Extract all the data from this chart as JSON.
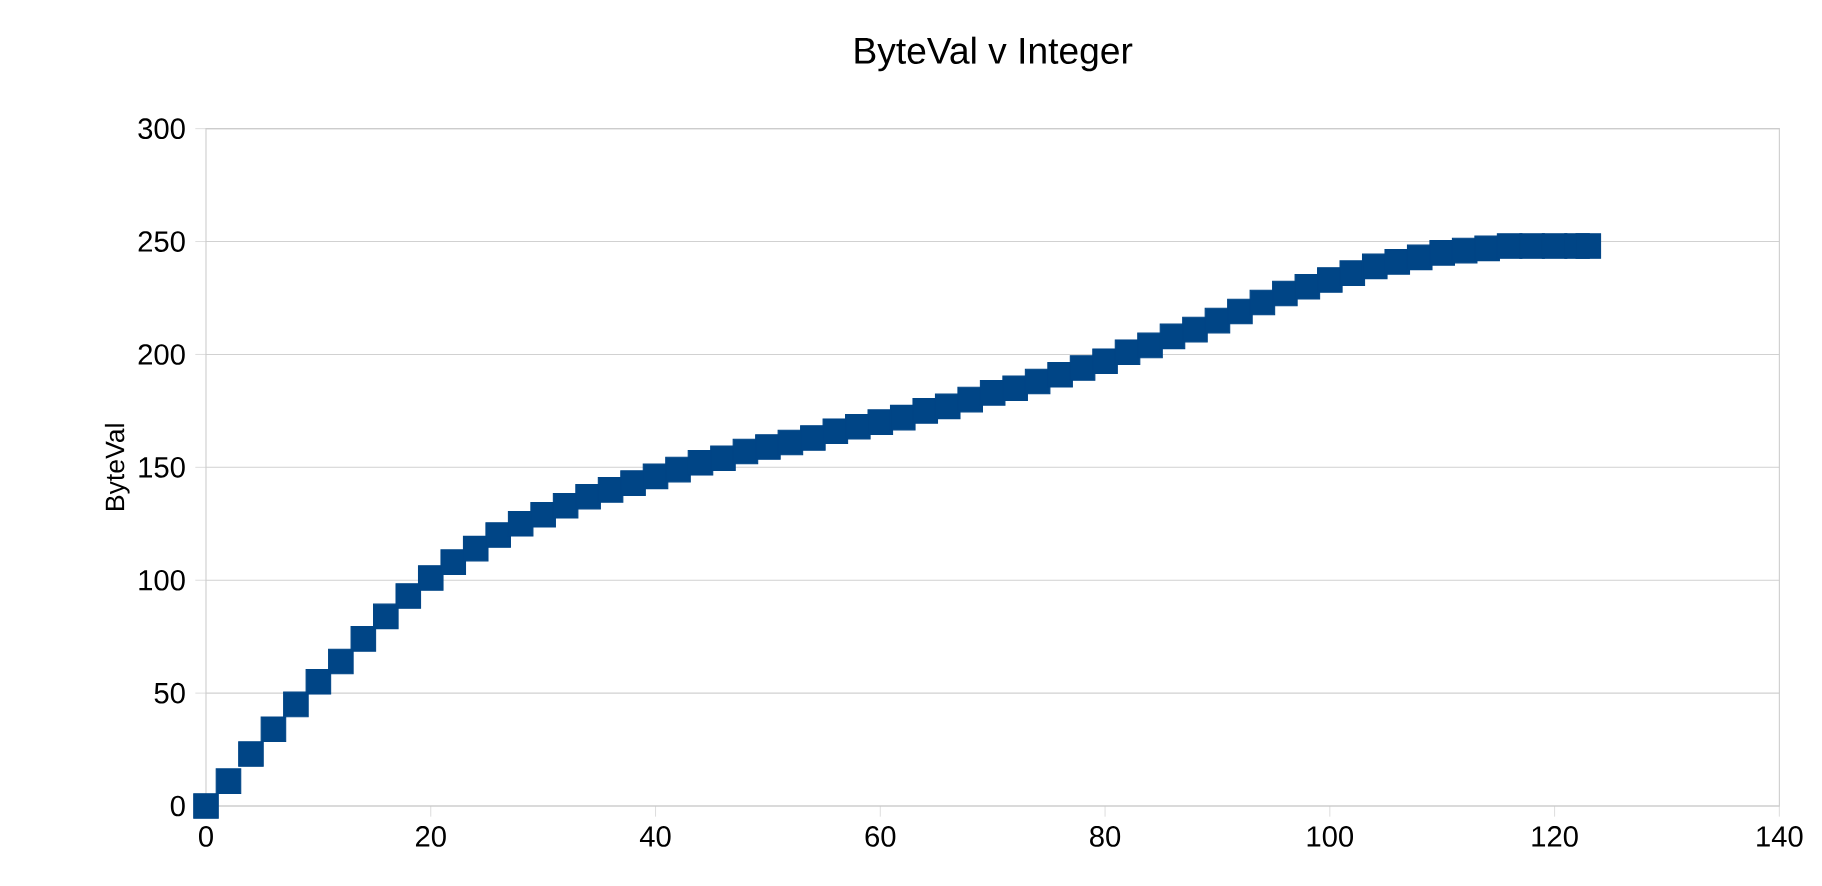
{
  "chart_data": {
    "type": "scatter",
    "title": "ByteVal v Integer",
    "ylabel": "ByteVal",
    "x": [
      0,
      2,
      4,
      6,
      8,
      10,
      12,
      14,
      16,
      18,
      20,
      22,
      24,
      26,
      28,
      30,
      32,
      34,
      36,
      38,
      40,
      42,
      44,
      46,
      48,
      50,
      52,
      54,
      56,
      58,
      60,
      62,
      64,
      66,
      68,
      70,
      72,
      74,
      76,
      78,
      80,
      82,
      84,
      86,
      88,
      90,
      92,
      94,
      96,
      98,
      100,
      102,
      104,
      106,
      108,
      110,
      112,
      114,
      116,
      118,
      120,
      122,
      123
    ],
    "series": [
      {
        "color": "#004586",
        "values": [
          0,
          11,
          23,
          34,
          45,
          55,
          64,
          74,
          84,
          93,
          101,
          108,
          114,
          120,
          125,
          129,
          133,
          137,
          140,
          143,
          146,
          149,
          152,
          154,
          157,
          159,
          161,
          163,
          166,
          168,
          170,
          172,
          175,
          177,
          180,
          183,
          185,
          188,
          191,
          194,
          197,
          201,
          204,
          208,
          211,
          215,
          219,
          223,
          227,
          230,
          233,
          236,
          239,
          241,
          243,
          245,
          246,
          247,
          248,
          248,
          248,
          248,
          248
        ]
      }
    ],
    "xlim": [
      0,
      140
    ],
    "xticks": [
      0,
      20,
      40,
      60,
      80,
      100,
      120,
      140
    ],
    "ylim": [
      0,
      300
    ],
    "yticks": [
      0,
      50,
      100,
      150,
      200,
      250,
      300
    ],
    "grid": "y",
    "marker": "square"
  }
}
